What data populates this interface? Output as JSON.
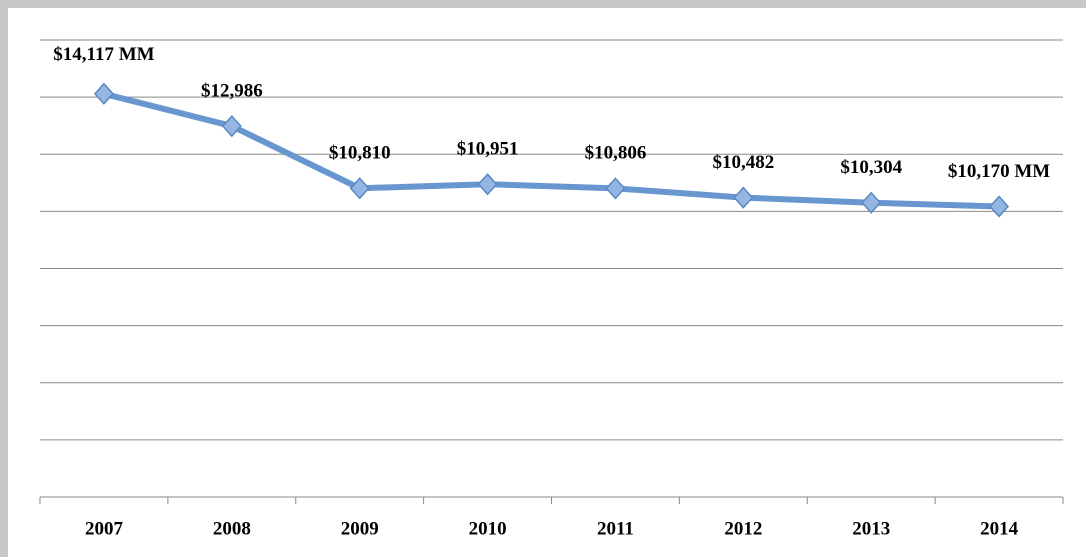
{
  "chart_data": {
    "type": "line",
    "categories": [
      "2007",
      "2008",
      "2009",
      "2010",
      "2011",
      "2012",
      "2013",
      "2014"
    ],
    "series": [
      {
        "color": "#6897cf",
        "values": [
          14117,
          12986,
          10810,
          10951,
          10806,
          10482,
          10304,
          10170
        ],
        "value_labels": [
          "$14,117 MM",
          "$12,986",
          "$10,810",
          "$10,951",
          "$10,806",
          "$10,482",
          "$10,304",
          "$10,170 MM"
        ]
      }
    ],
    "ylim": [
      0,
      16000
    ],
    "yticks": [
      0,
      2000,
      4000,
      6000,
      8000,
      10000,
      12000,
      14000,
      16000
    ],
    "grid": true
  }
}
